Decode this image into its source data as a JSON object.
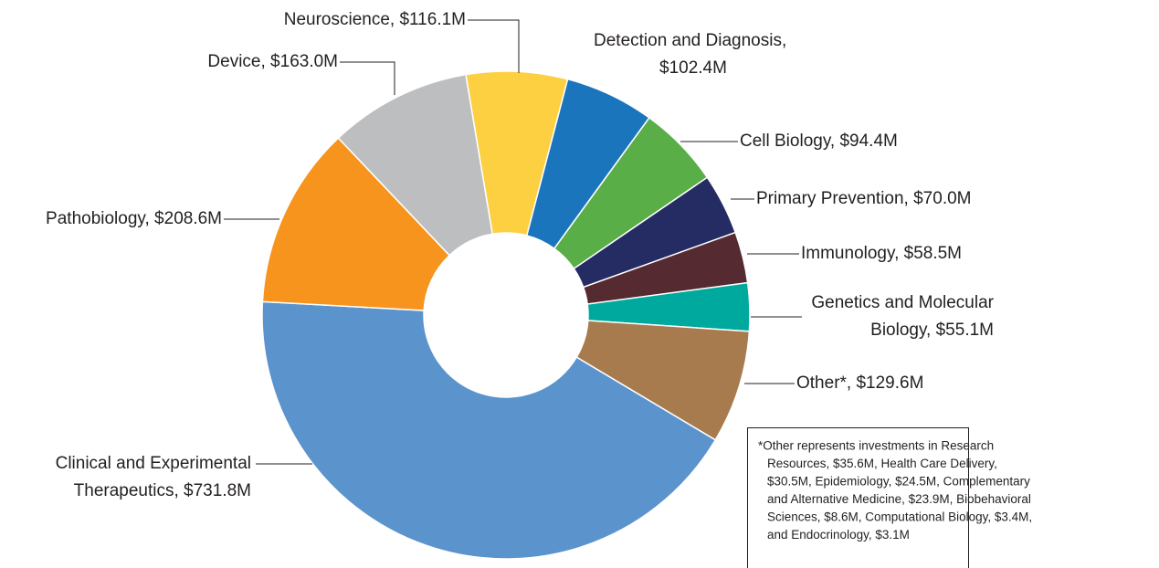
{
  "chart_data": {
    "type": "donut",
    "labels": [
      [
        "Neuroscience, $116.1M"
      ],
      [
        "Detection and Diagnosis,",
        "$102.4M"
      ],
      [
        "Cell Biology, $94.4M"
      ],
      [
        "Primary Prevention, $70.0M"
      ],
      [
        "Immunology, $58.5M"
      ],
      [
        "Genetics and Molecular",
        "Biology, $55.1M"
      ],
      [
        "Other*, $129.6M"
      ],
      [
        "Clinical and Experimental",
        "Therapeutics, $731.8M"
      ],
      [
        "Pathobiology, $208.6M"
      ],
      [
        "Device, $163.0M"
      ]
    ],
    "values": [
      116.1,
      102.4,
      94.4,
      70.0,
      58.5,
      55.1,
      129.6,
      731.8,
      208.6,
      163.0
    ],
    "colors": [
      "#fdd042",
      "#1b75bc",
      "#5aae48",
      "#252b63",
      "#552a30",
      "#00a99d",
      "#a77b4e",
      "#5b93cc",
      "#f7941e",
      "#bcbec0"
    ],
    "note": [
      "*Other represents investments in Research",
      "Resources, $35.6M, Health Care Delivery,",
      "$30.5M, Epidemiology, $24.5M, Complementary",
      "and Alternative Medicine, $23.9M, Biobehavioral",
      "Sciences, $8.6M, Computational Biology, $3.4M,",
      "and Endocrinology, $3.1M"
    ]
  }
}
